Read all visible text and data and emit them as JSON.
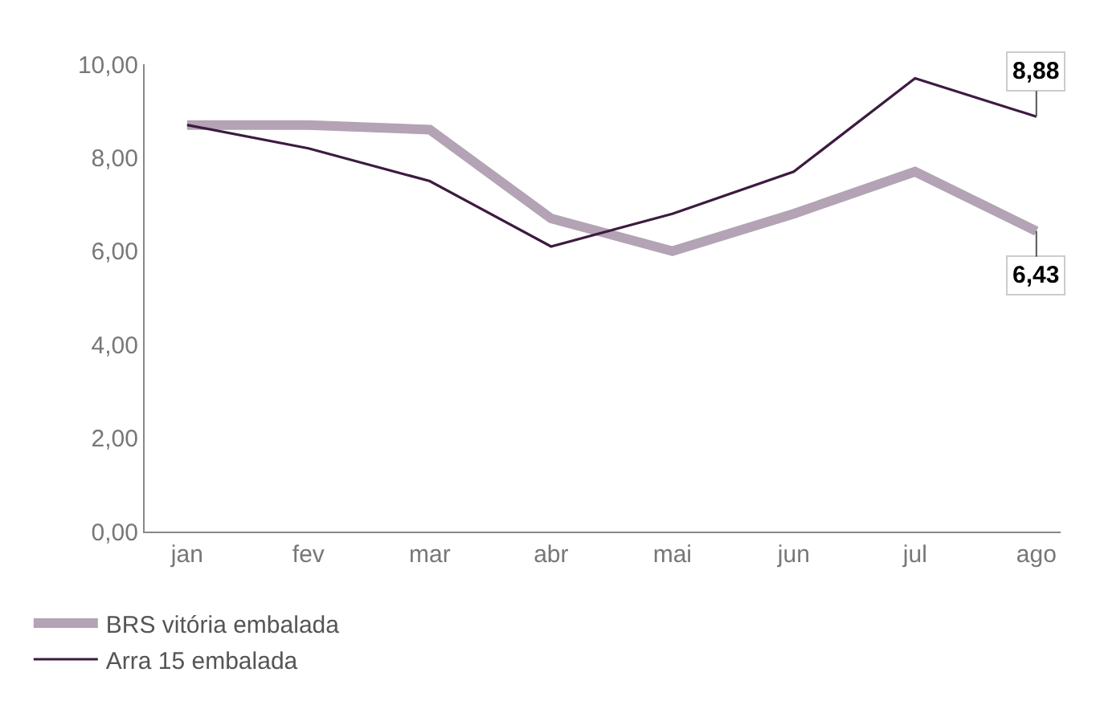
{
  "chart_data": {
    "type": "line",
    "categories": [
      "jan",
      "fev",
      "mar",
      "abr",
      "mai",
      "jun",
      "jul",
      "ago"
    ],
    "series": [
      {
        "name": "BRS vitória embalada",
        "color": "#b3a3b5",
        "values": [
          8.7,
          8.7,
          8.6,
          6.7,
          6.0,
          6.8,
          7.7,
          6.43
        ],
        "value_labels": [
          null,
          null,
          null,
          null,
          null,
          null,
          null,
          "6,43"
        ]
      },
      {
        "name": "Arra 15 embalada",
        "color": "#3d1a40",
        "values": [
          8.7,
          8.2,
          7.5,
          6.1,
          6.8,
          7.7,
          9.7,
          8.88
        ],
        "value_labels": [
          null,
          null,
          null,
          null,
          null,
          null,
          null,
          "8,88"
        ]
      }
    ],
    "ylim": [
      0,
      10
    ],
    "yticks": [
      {
        "value": 0,
        "label": "0,00"
      },
      {
        "value": 2,
        "label": "2,00"
      },
      {
        "value": 4,
        "label": "4,00"
      },
      {
        "value": 6,
        "label": "6,00"
      },
      {
        "value": 8,
        "label": "8,00"
      },
      {
        "value": 10,
        "label": "10,00"
      }
    ],
    "legend": "bottom",
    "marker": "none",
    "line_style": "solid"
  }
}
